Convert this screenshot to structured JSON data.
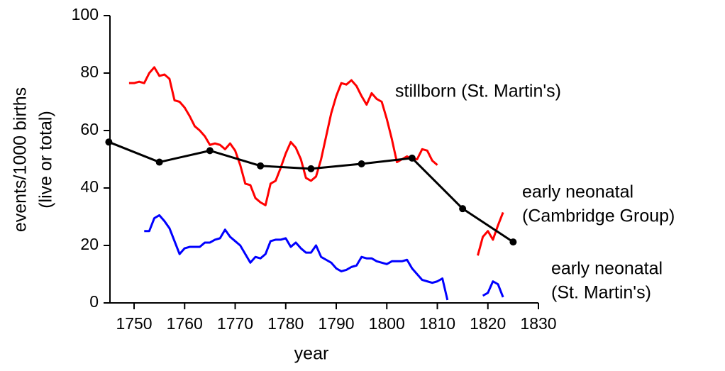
{
  "chart_data": {
    "type": "line",
    "xlabel": "year",
    "ylabel": [
      "events/1000 births",
      "(live or total)"
    ],
    "xlim": [
      1745,
      1830
    ],
    "xticks": [
      1750,
      1760,
      1770,
      1780,
      1790,
      1800,
      1810,
      1820,
      1830
    ],
    "ylim": [
      0,
      100
    ],
    "yticks": [
      0,
      20,
      40,
      60,
      80,
      100
    ],
    "annotations": [
      [
        "stillborn (St. Martin's)"
      ],
      [
        "early neonatal",
        "(Cambridge Group)"
      ],
      [
        "early neonatal",
        "(St. Martin's)"
      ]
    ],
    "series": [
      {
        "color": "#ff0000",
        "markers": false,
        "x": [
          1749,
          1750,
          1751,
          1752,
          1753,
          1754,
          1755,
          1756,
          1757,
          1758,
          1759,
          1760,
          1761,
          1762,
          1763,
          1764,
          1765,
          1766,
          1767,
          1768,
          1769,
          1770,
          1771,
          1772,
          1773,
          1774,
          1775,
          1776,
          1777,
          1778,
          1779,
          1780,
          1781,
          1782,
          1783,
          1784,
          1785,
          1786,
          1787,
          1788,
          1789,
          1790,
          1791,
          1792,
          1793,
          1794,
          1795,
          1796,
          1797,
          1798,
          1799,
          1800,
          1801,
          1802,
          1803,
          1804,
          1805,
          1806,
          1807,
          1808,
          1809,
          1810,
          null,
          1818,
          1819,
          1820,
          1821,
          1822,
          1823
        ],
        "values": [
          76.5,
          76.5,
          77,
          76.5,
          80,
          82,
          79,
          79.5,
          78,
          70.5,
          70,
          68,
          65,
          61.5,
          60,
          58,
          55,
          55.5,
          55,
          53.5,
          55.5,
          53,
          48,
          41.5,
          41,
          36.5,
          35,
          34,
          41.5,
          42.5,
          47,
          52,
          56,
          54,
          50,
          43.5,
          42.5,
          44,
          50,
          58,
          66,
          72,
          76.5,
          76,
          77.5,
          75.5,
          72,
          69,
          73,
          71,
          70,
          64,
          57,
          49,
          50,
          51,
          50,
          50,
          53.5,
          53,
          49.5,
          48,
          null,
          16.5,
          23,
          25,
          22,
          27,
          31.5
        ]
      },
      {
        "color": "#0000ff",
        "markers": false,
        "x": [
          1752,
          1753,
          1754,
          1755,
          1756,
          1757,
          1758,
          1759,
          1760,
          1761,
          1762,
          1763,
          1764,
          1765,
          1766,
          1767,
          1768,
          1769,
          1770,
          1771,
          1772,
          1773,
          1774,
          1775,
          1776,
          1777,
          1778,
          1779,
          1780,
          1781,
          1782,
          1783,
          1784,
          1785,
          1786,
          1787,
          1788,
          1789,
          1790,
          1791,
          1792,
          1793,
          1794,
          1795,
          1796,
          1797,
          1798,
          1799,
          1800,
          1801,
          1802,
          1803,
          1804,
          1805,
          1806,
          1807,
          1808,
          1809,
          1810,
          1811,
          1812,
          null,
          1819,
          1820,
          1821,
          1822,
          1823
        ],
        "values": [
          25,
          25,
          29.5,
          30.5,
          28.5,
          26,
          21.5,
          17,
          19,
          19.5,
          19.5,
          19.5,
          21,
          21,
          22,
          22.5,
          25.5,
          23,
          21.5,
          20,
          17,
          14,
          16,
          15.5,
          17,
          21.5,
          22,
          22,
          22.5,
          19.5,
          21,
          19,
          17.5,
          17.5,
          20,
          16,
          15,
          14,
          12,
          11,
          11.5,
          12.5,
          13,
          16,
          15.5,
          15.5,
          14.5,
          14,
          13.5,
          14.5,
          14.5,
          14.5,
          15,
          12,
          10,
          8,
          7.5,
          7,
          7.5,
          8.5,
          1,
          null,
          2.5,
          3.5,
          7.5,
          6.5,
          2
        ]
      },
      {
        "color": "#000000",
        "markers": true,
        "x": [
          1745,
          1755,
          1765,
          1775,
          1785,
          1795,
          1805,
          1815,
          1825
        ],
        "values": [
          56,
          49,
          53,
          47.7,
          46.7,
          48.4,
          50.4,
          32.8,
          21.2
        ]
      }
    ]
  }
}
